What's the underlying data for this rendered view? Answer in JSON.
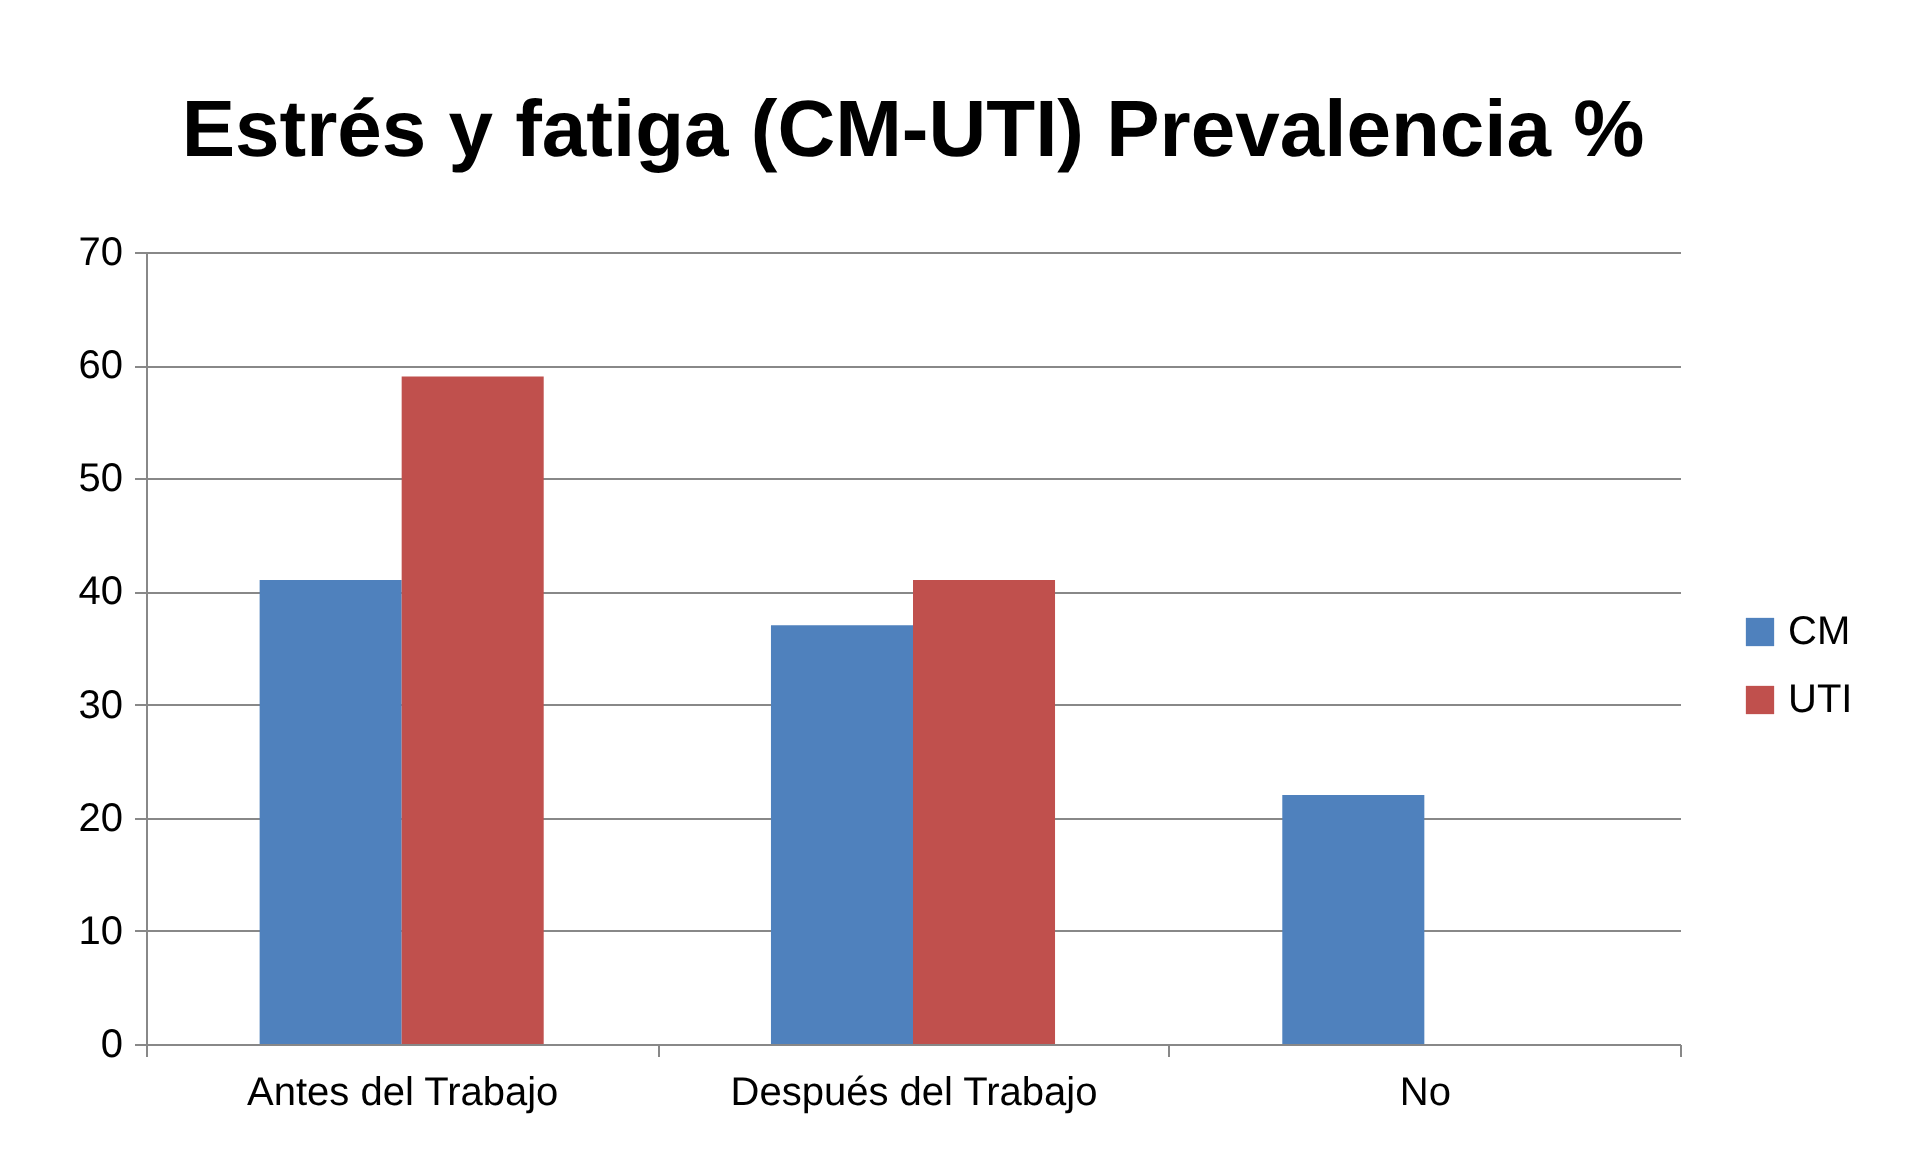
{
  "chart_data": {
    "type": "bar",
    "title": "Estrés y fatiga (CM-UTI) Prevalencia %",
    "categories": [
      "Antes del Trabajo",
      "Después del Trabajo",
      "No"
    ],
    "series": [
      {
        "name": "CM",
        "color": "#4f81bd",
        "values": [
          41,
          37,
          22
        ]
      },
      {
        "name": "UTI",
        "color": "#c0504d",
        "values": [
          59,
          41,
          0
        ]
      }
    ],
    "ylim": [
      0,
      70
    ],
    "yticks": [
      0,
      10,
      20,
      30,
      40,
      50,
      60,
      70
    ],
    "grid": "y",
    "legend": "right"
  }
}
